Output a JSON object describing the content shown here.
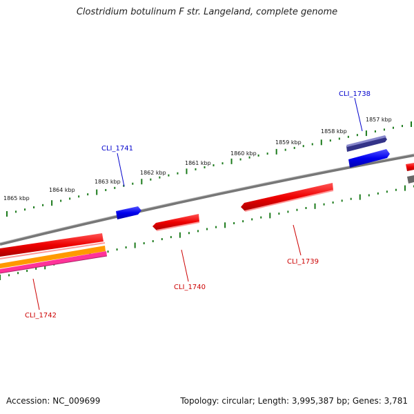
{
  "title": "Clostridium botulinum F str. Langeland, complete genome",
  "accession": "Accession: NC_009699",
  "topology": "Topology: circular; Length: 3,995,387 bp; Genes: 3,781",
  "scale_labels": [
    "1857 kbp",
    "1858 kbp",
    "1859 kbp",
    "1860 kbp",
    "1861 kbp",
    "1862 kbp",
    "1863 kbp",
    "1864 kbp",
    "1865 kbp"
  ],
  "genes": [
    {
      "id": "CLI_1738",
      "strand": "forward",
      "color": "#0000cc"
    },
    {
      "id": "CLI_1741",
      "strand": "forward",
      "color": "#0000cc"
    },
    {
      "id": "CLI_1739",
      "strand": "reverse",
      "color": "#cc0000"
    },
    {
      "id": "CLI_1740",
      "strand": "reverse",
      "color": "#cc0000"
    },
    {
      "id": "CLI_1742",
      "strand": "reverse",
      "color": "#cc0000"
    }
  ],
  "colors": {
    "backbone": "#808080",
    "tick": "#1a7a1a",
    "forward_gene": "#0000ee",
    "reverse_gene": "#ee0000",
    "orange_track": "#ff9900",
    "pink_track": "#ff3399",
    "purple_track": "#6666bb"
  }
}
